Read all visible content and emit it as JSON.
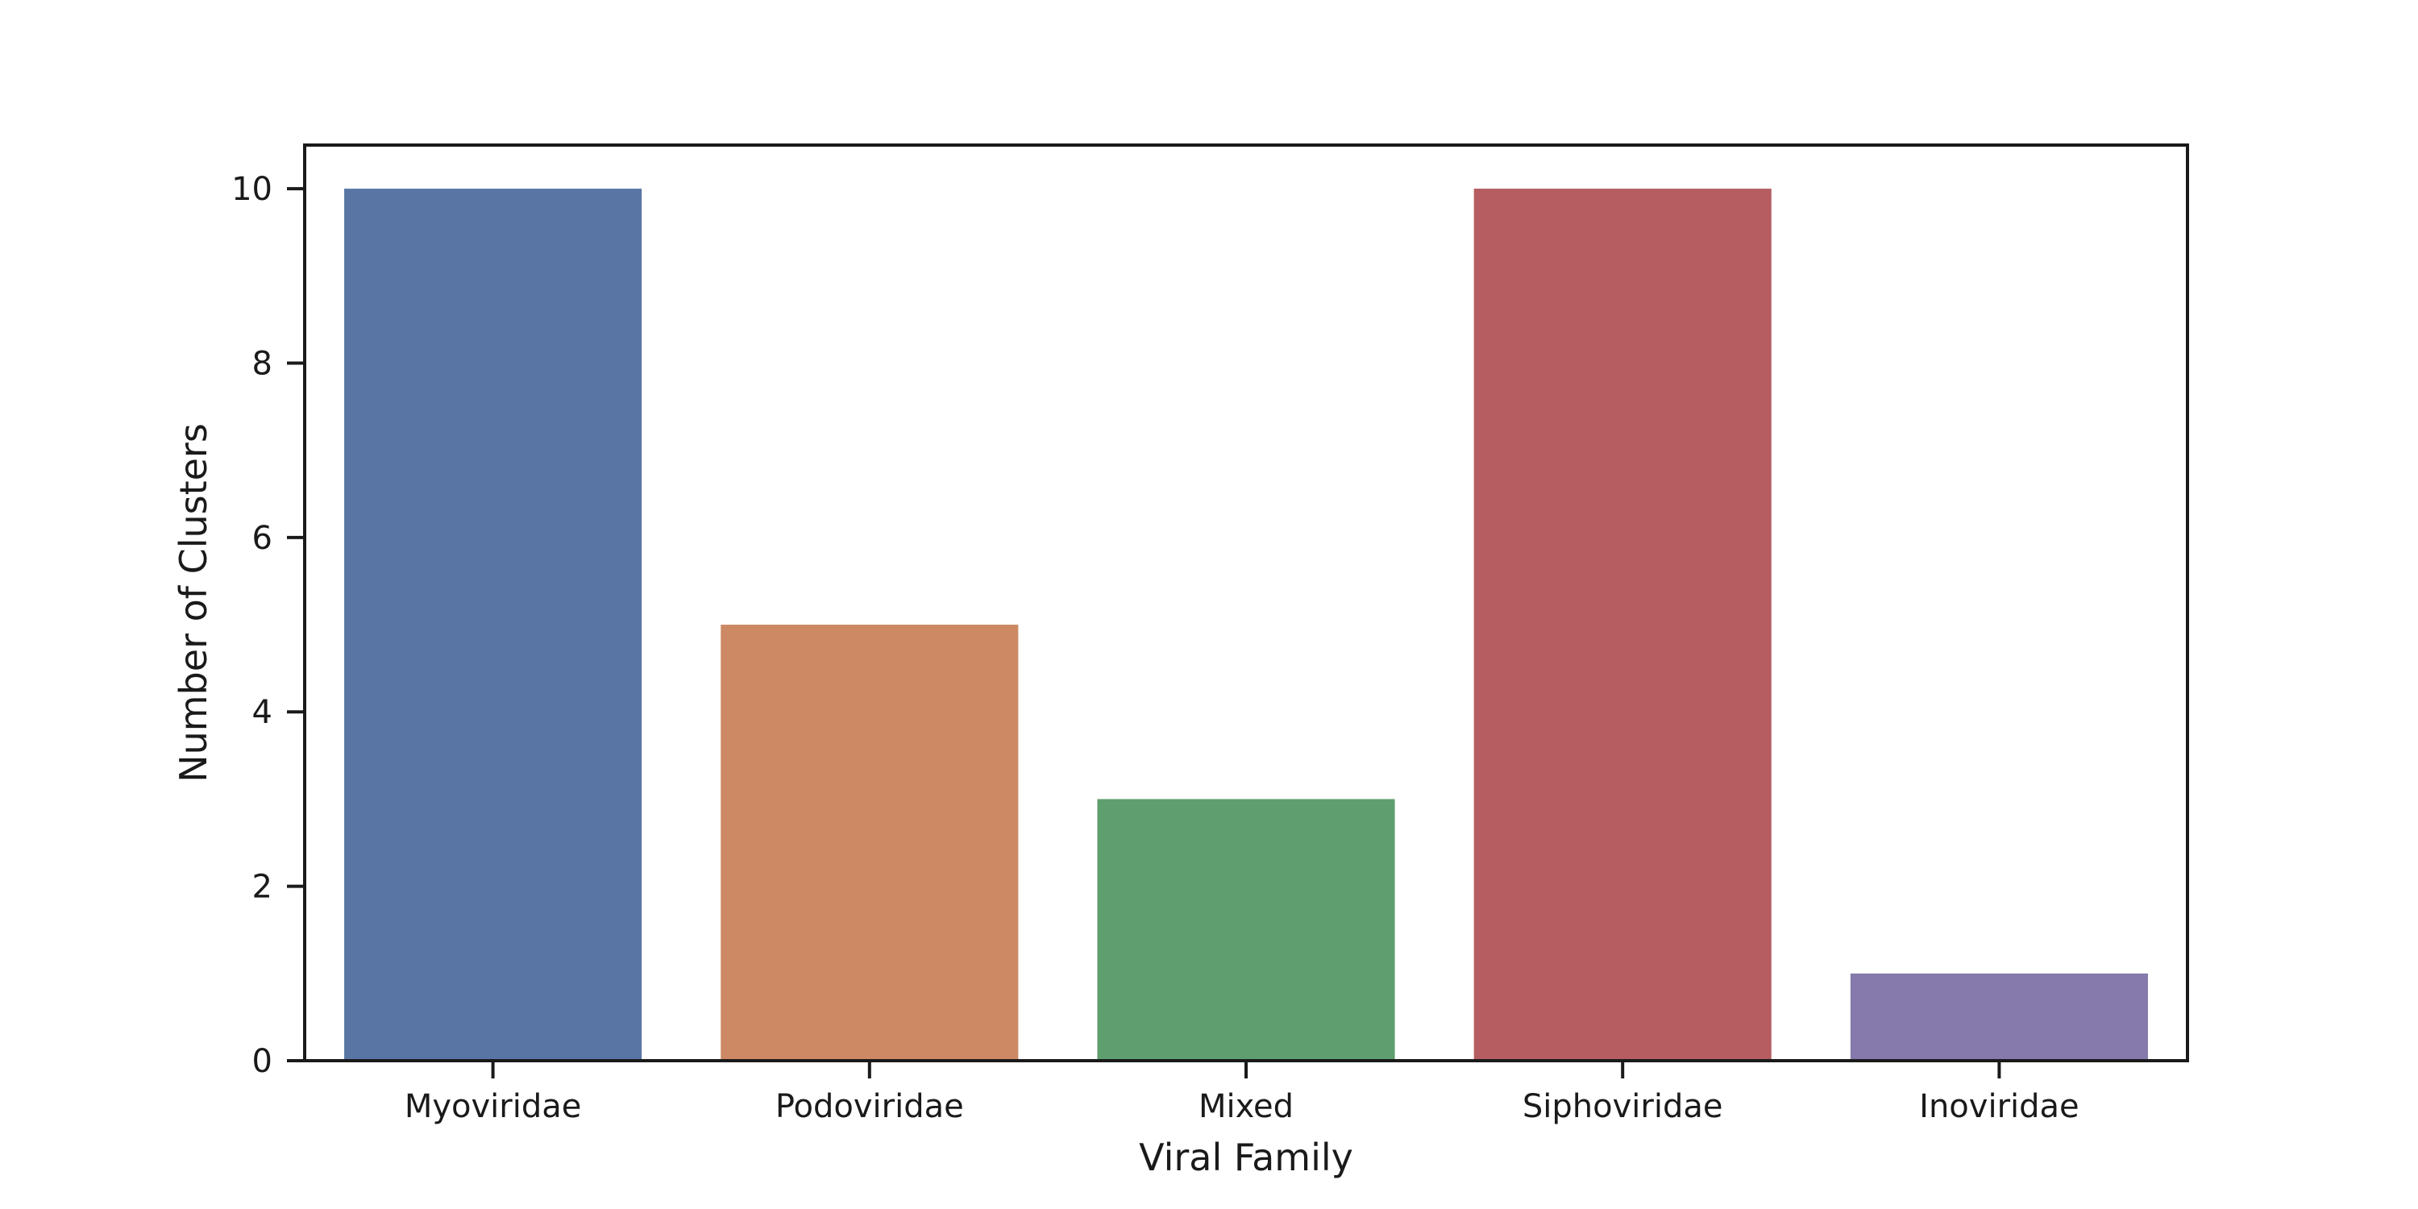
{
  "chart_data": {
    "type": "bar",
    "title": "",
    "xlabel": "Viral Family",
    "ylabel": "Number of Clusters",
    "categories": [
      "Myoviridae",
      "Podoviridae",
      "Mixed",
      "Siphoviridae",
      "Inoviridae"
    ],
    "values": [
      10,
      5,
      3,
      10,
      1
    ],
    "colors": [
      "#5975a4",
      "#cc8963",
      "#5f9e6e",
      "#b55d60",
      "#857aab"
    ],
    "ylim": [
      0,
      10.5
    ],
    "yticks": [
      0,
      2,
      4,
      6,
      8,
      10
    ],
    "grid": false,
    "legend": "none"
  }
}
